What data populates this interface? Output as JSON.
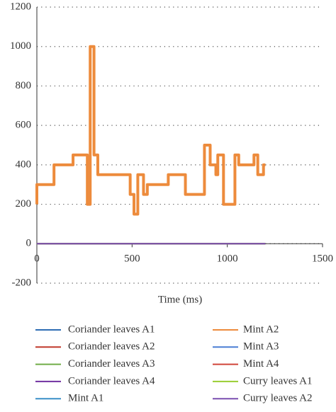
{
  "chart_data": {
    "type": "line",
    "xlabel": "Time (ms)",
    "xlim": [
      0,
      1500
    ],
    "xticks": [
      0,
      500,
      1000,
      1500
    ],
    "ylim": [
      -200,
      1200
    ],
    "yticks": [
      -200,
      0,
      200,
      400,
      600,
      800,
      1000,
      1200
    ],
    "grid": true,
    "x": [
      0,
      0,
      90,
      90,
      190,
      190,
      265,
      265,
      280,
      280,
      300,
      300,
      320,
      320,
      490,
      490,
      510,
      510,
      530,
      530,
      560,
      560,
      580,
      580,
      690,
      690,
      780,
      780,
      880,
      880,
      910,
      910,
      940,
      940,
      950,
      950,
      980,
      980,
      1040,
      1040,
      1060,
      1060,
      1140,
      1140,
      1160,
      1160,
      1190,
      1190,
      1200
    ],
    "series": [
      {
        "name": "Coriander leaves A1",
        "color": "#2e6db4",
        "values": [
          0,
          0,
          0,
          0,
          0,
          0,
          0,
          0,
          0,
          0,
          0,
          0,
          0,
          0,
          0,
          0,
          0,
          0,
          0,
          0,
          0,
          0,
          0,
          0,
          0,
          0,
          0,
          0,
          0,
          0,
          0,
          0,
          0,
          0,
          0,
          0,
          0,
          0,
          0,
          0,
          0,
          0,
          0,
          0,
          0,
          0,
          0,
          0,
          0
        ]
      },
      {
        "name": "Coriander leaves A2",
        "color": "#c0392b",
        "values": [
          0,
          0,
          0,
          0,
          0,
          0,
          0,
          0,
          0,
          0,
          0,
          0,
          0,
          0,
          0,
          0,
          0,
          0,
          0,
          0,
          0,
          0,
          0,
          0,
          0,
          0,
          0,
          0,
          0,
          0,
          0,
          0,
          0,
          0,
          0,
          0,
          0,
          0,
          0,
          0,
          0,
          0,
          0,
          0,
          0,
          0,
          0,
          0,
          0
        ]
      },
      {
        "name": "Coriander leaves A3",
        "color": "#70ad47",
        "values": [
          0,
          0,
          0,
          0,
          0,
          0,
          0,
          0,
          0,
          0,
          0,
          0,
          0,
          0,
          0,
          0,
          0,
          0,
          0,
          0,
          0,
          0,
          0,
          0,
          0,
          0,
          0,
          0,
          0,
          0,
          0,
          0,
          0,
          0,
          0,
          0,
          0,
          0,
          0,
          0,
          0,
          0,
          0,
          0,
          0,
          0,
          0,
          0,
          0
        ]
      },
      {
        "name": "Coriander leaves A4",
        "color": "#7030a0",
        "values": [
          0,
          0,
          0,
          0,
          0,
          0,
          0,
          0,
          0,
          0,
          0,
          0,
          0,
          0,
          0,
          0,
          0,
          0,
          0,
          0,
          0,
          0,
          0,
          0,
          0,
          0,
          0,
          0,
          0,
          0,
          0,
          0,
          0,
          0,
          0,
          0,
          0,
          0,
          0,
          0,
          0,
          0,
          0,
          0,
          0,
          0,
          0,
          0,
          0
        ]
      },
      {
        "name": "Mint A1",
        "color": "#3a8fc7",
        "values": [
          0,
          0,
          0,
          0,
          0,
          0,
          0,
          0,
          0,
          0,
          0,
          0,
          0,
          0,
          0,
          0,
          0,
          0,
          0,
          0,
          0,
          0,
          0,
          0,
          0,
          0,
          0,
          0,
          0,
          0,
          0,
          0,
          0,
          0,
          0,
          0,
          0,
          0,
          0,
          0,
          0,
          0,
          0,
          0,
          0,
          0,
          0,
          0,
          0
        ]
      },
      {
        "name": "Mint A2",
        "color": "#ed8b3c",
        "values": [
          200,
          300,
          300,
          400,
          400,
          450,
          450,
          200,
          200,
          1000,
          1000,
          450,
          450,
          350,
          350,
          250,
          250,
          150,
          150,
          350,
          350,
          250,
          250,
          300,
          300,
          350,
          350,
          250,
          250,
          500,
          500,
          400,
          400,
          350,
          350,
          450,
          450,
          200,
          200,
          450,
          450,
          400,
          400,
          450,
          450,
          350,
          350,
          400,
          400
        ]
      },
      {
        "name": "Mint A3",
        "color": "#4a7fd4",
        "values": [
          0,
          0,
          0,
          0,
          0,
          0,
          0,
          0,
          0,
          0,
          0,
          0,
          0,
          0,
          0,
          0,
          0,
          0,
          0,
          0,
          0,
          0,
          0,
          0,
          0,
          0,
          0,
          0,
          0,
          0,
          0,
          0,
          0,
          0,
          0,
          0,
          0,
          0,
          0,
          0,
          0,
          0,
          0,
          0,
          0,
          0,
          0,
          0,
          0
        ]
      },
      {
        "name": "Mint A4",
        "color": "#d0453a",
        "values": [
          0,
          0,
          0,
          0,
          0,
          0,
          0,
          0,
          0,
          0,
          0,
          0,
          0,
          0,
          0,
          0,
          0,
          0,
          0,
          0,
          0,
          0,
          0,
          0,
          0,
          0,
          0,
          0,
          0,
          0,
          0,
          0,
          0,
          0,
          0,
          0,
          0,
          0,
          0,
          0,
          0,
          0,
          0,
          0,
          0,
          0,
          0,
          0,
          0
        ]
      },
      {
        "name": "Curry leaves A1",
        "color": "#9acd32",
        "values": [
          0,
          0,
          0,
          0,
          0,
          0,
          0,
          0,
          0,
          0,
          0,
          0,
          0,
          0,
          0,
          0,
          0,
          0,
          0,
          0,
          0,
          0,
          0,
          0,
          0,
          0,
          0,
          0,
          0,
          0,
          0,
          0,
          0,
          0,
          0,
          0,
          0,
          0,
          0,
          0,
          0,
          0,
          0,
          0,
          0,
          0,
          0,
          0,
          0
        ]
      },
      {
        "name": "Curry leaves A2",
        "color": "#7b4fb0",
        "values": [
          0,
          0,
          0,
          0,
          0,
          0,
          0,
          0,
          0,
          0,
          0,
          0,
          0,
          0,
          0,
          0,
          0,
          0,
          0,
          0,
          0,
          0,
          0,
          0,
          0,
          0,
          0,
          0,
          0,
          0,
          0,
          0,
          0,
          0,
          0,
          0,
          0,
          0,
          0,
          0,
          0,
          0,
          0,
          0,
          0,
          0,
          0,
          0,
          0
        ]
      }
    ]
  }
}
